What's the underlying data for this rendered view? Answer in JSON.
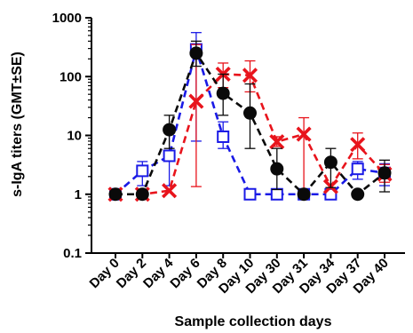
{
  "chart_data": {
    "type": "line",
    "title": "",
    "xlabel": "Sample collection days",
    "ylabel": "s-IgA titers (GMT±SE)",
    "y_scale": "log",
    "ylim": [
      0.1,
      1000
    ],
    "y_ticks": [
      "0.1",
      "1",
      "10",
      "100",
      "1000"
    ],
    "grid": false,
    "legend": "none",
    "categories": [
      "Day 0",
      "Day 2",
      "Day 4",
      "Day 6",
      "Day 8",
      "Day 10",
      "Day 30",
      "Day 31",
      "Day 34",
      "Day 37",
      "Day 40"
    ],
    "series": [
      {
        "color": "#0a0a0a",
        "marker": "filled-circle",
        "line_style": "dashed",
        "values": [
          1,
          1,
          12.5,
          250,
          52,
          24,
          2.7,
          1,
          3.5,
          1,
          2.3
        ],
        "err_low": [
          1,
          1,
          6,
          150,
          22,
          6,
          1.2,
          1,
          1.3,
          1,
          1.1
        ],
        "err_high": [
          1,
          1,
          22,
          400,
          110,
          75,
          6,
          1,
          6,
          1,
          3.8
        ]
      },
      {
        "color": "#e8141c",
        "marker": "x-cross",
        "line_style": "dashed",
        "values": [
          1,
          1,
          1.15,
          38,
          110,
          105,
          7.8,
          10.5,
          1.35,
          7,
          2.2
        ],
        "err_low": [
          1,
          1,
          1.15,
          1.35,
          65,
          55,
          6.5,
          1.0,
          1.35,
          4,
          1.6
        ],
        "err_high": [
          1,
          1,
          1.15,
          350,
          170,
          185,
          9.5,
          20,
          1.35,
          11,
          3.2
        ]
      },
      {
        "color": "#1a1ae6",
        "marker": "open-square",
        "line_style": "dashed",
        "values": [
          1,
          2.5,
          4.5,
          290,
          9.5,
          1,
          1,
          1,
          1,
          2.7,
          2.3
        ],
        "err_low": [
          1,
          1.4,
          1.4,
          8,
          6,
          1,
          1,
          1,
          1,
          1.8,
          1.4
        ],
        "err_high": [
          1,
          3.6,
          12,
          560,
          17,
          1,
          1,
          1,
          1,
          3.6,
          3.3
        ]
      }
    ]
  }
}
